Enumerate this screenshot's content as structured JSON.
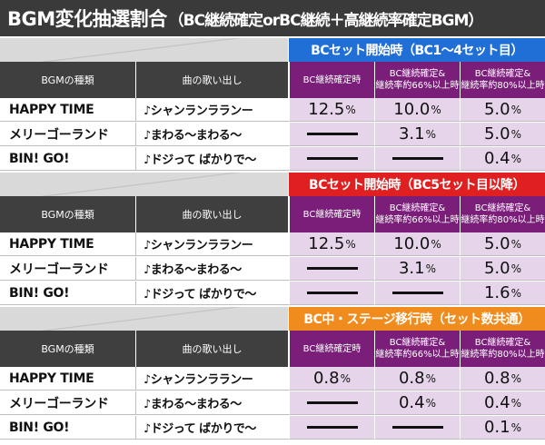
{
  "title": {
    "main": "BGM変化抽選割合",
    "paren": "（BC継続確定orBC継続＋高継続率確定BGM）"
  },
  "columns": {
    "bgm_type": "BGMの種類",
    "song_opening": "曲の歌い出し",
    "confirmed": "BC継続確定時",
    "rate66_line1": "BC継続確定&",
    "rate66_line2": "継続率約66%以上時",
    "rate80_line1": "BC継続確定&",
    "rate80_line2": "継続率約80%以上時"
  },
  "colors": {
    "band_blue": "#1f6fd6",
    "band_red": "#e02020",
    "band_orange": "#f08c1e",
    "header_purple": "#7a1e7a",
    "value_bg": "#e6d4ea",
    "title_bg": "#3a3a3a"
  },
  "sections": [
    {
      "band_label": "BCセット開始時（BC1～4セット目）",
      "rows": [
        {
          "name": "HAPPY TIME",
          "song": "♪シャンランラランー",
          "v1": "12.5",
          "v2": "10.0",
          "v3": "5.0"
        },
        {
          "name": "メリーゴーランド",
          "song": "♪まわる～まわる～",
          "v1": null,
          "v2": "3.1",
          "v3": "5.0"
        },
        {
          "name": "BIN! GO!",
          "song": "♪ドジって ばかりで～",
          "v1": null,
          "v2": null,
          "v3": "0.4"
        }
      ]
    },
    {
      "band_label": "BCセット開始時（BC5セット目以降）",
      "rows": [
        {
          "name": "HAPPY TIME",
          "song": "♪シャンランラランー",
          "v1": "12.5",
          "v2": "10.0",
          "v3": "5.0"
        },
        {
          "name": "メリーゴーランド",
          "song": "♪まわる～まわる～",
          "v1": null,
          "v2": "3.1",
          "v3": "5.0"
        },
        {
          "name": "BIN! GO!",
          "song": "♪ドジって ばかりで～",
          "v1": null,
          "v2": null,
          "v3": "1.6"
        }
      ]
    },
    {
      "band_label": "BC中・ステージ移行時（セット数共通）",
      "rows": [
        {
          "name": "HAPPY TIME",
          "song": "♪シャンランラランー",
          "v1": "0.8",
          "v2": "0.8",
          "v3": "0.8"
        },
        {
          "name": "メリーゴーランド",
          "song": "♪まわる～まわる～",
          "v1": null,
          "v2": "0.4",
          "v3": "0.4"
        },
        {
          "name": "BIN! GO!",
          "song": "♪ドジって ばかりで～",
          "v1": null,
          "v2": null,
          "v3": "0.1"
        }
      ]
    }
  ],
  "percent_sign": "%"
}
